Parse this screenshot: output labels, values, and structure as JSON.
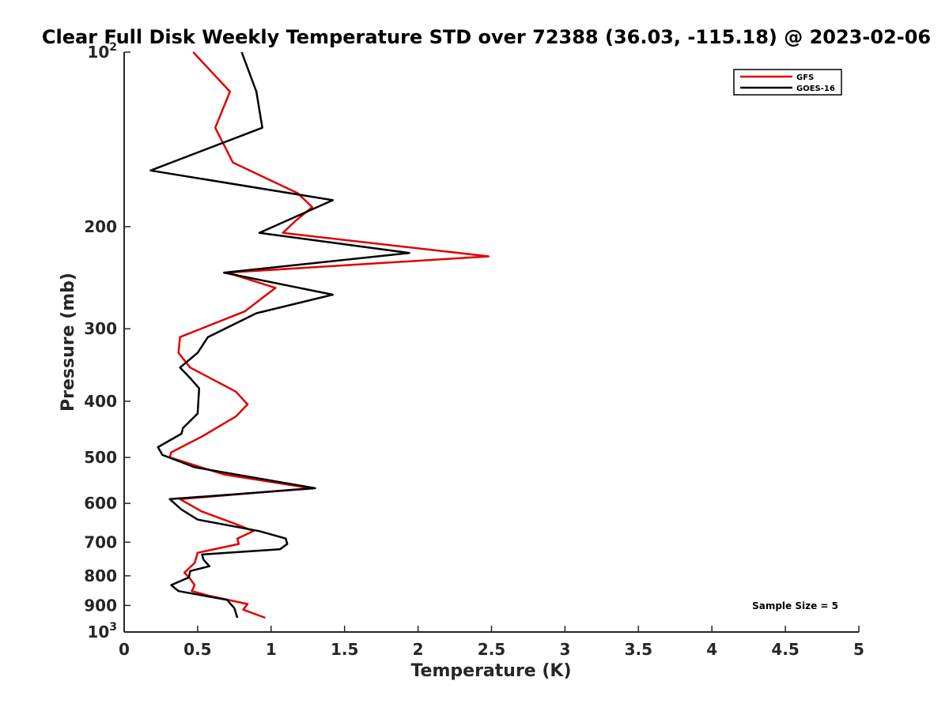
{
  "chart_data": {
    "type": "line",
    "title": "Clear Full Disk Weekly Temperature STD over 72388 (36.03, -115.18) @ 2023-02-06",
    "xlabel": "Temperature (K)",
    "ylabel": "Pressure (mb)",
    "xlim": [
      0,
      5
    ],
    "ylim": [
      1000,
      100
    ],
    "y_scale": "log",
    "y_reversed": true,
    "grid": false,
    "legend_position": "top-right",
    "x_ticks": [
      0,
      0.5,
      1,
      1.5,
      2,
      2.5,
      3,
      3.5,
      4,
      4.5,
      5
    ],
    "x_tick_labels": [
      "0",
      "0.5",
      "1",
      "1.5",
      "2",
      "2.5",
      "3",
      "3.5",
      "4",
      "4.5",
      "5"
    ],
    "y_ticks": [
      {
        "value": 100,
        "base": "10",
        "exp": "2"
      },
      {
        "value": 200,
        "label": "200"
      },
      {
        "value": 300,
        "label": "300"
      },
      {
        "value": 400,
        "label": "400"
      },
      {
        "value": 500,
        "label": "500"
      },
      {
        "value": 600,
        "label": "600"
      },
      {
        "value": 700,
        "label": "700"
      },
      {
        "value": 800,
        "label": "800"
      },
      {
        "value": 900,
        "label": "900"
      },
      {
        "value": 1000,
        "base": "10",
        "exp": "3"
      }
    ],
    "annotation": "Sample Size = 5",
    "series": [
      {
        "name": "GFS",
        "color": "#e00000",
        "points": [
          [
            0.47,
            100
          ],
          [
            0.72,
            117
          ],
          [
            0.62,
            135
          ],
          [
            0.74,
            155
          ],
          [
            1.18,
            175
          ],
          [
            1.28,
            185
          ],
          [
            1.17,
            195
          ],
          [
            1.08,
            205
          ],
          [
            2.48,
            225
          ],
          [
            0.7,
            240
          ],
          [
            1.03,
            255
          ],
          [
            0.82,
            280
          ],
          [
            0.38,
            310
          ],
          [
            0.37,
            330
          ],
          [
            0.45,
            350
          ],
          [
            0.76,
            385
          ],
          [
            0.84,
            405
          ],
          [
            0.76,
            425
          ],
          [
            0.53,
            460
          ],
          [
            0.32,
            490
          ],
          [
            0.31,
            500
          ],
          [
            0.68,
            535
          ],
          [
            1.27,
            565
          ],
          [
            0.38,
            590
          ],
          [
            0.53,
            620
          ],
          [
            0.75,
            650
          ],
          [
            0.88,
            670
          ],
          [
            0.77,
            690
          ],
          [
            0.78,
            705
          ],
          [
            0.5,
            730
          ],
          [
            0.48,
            760
          ],
          [
            0.41,
            790
          ],
          [
            0.45,
            810
          ],
          [
            0.48,
            830
          ],
          [
            0.46,
            850
          ],
          [
            0.57,
            865
          ],
          [
            0.84,
            895
          ],
          [
            0.81,
            915
          ],
          [
            0.96,
            945
          ]
        ]
      },
      {
        "name": "GOES-16",
        "color": "#000000",
        "points": [
          [
            0.8,
            100
          ],
          [
            0.9,
            117
          ],
          [
            0.94,
            135
          ],
          [
            0.18,
            160
          ],
          [
            1.42,
            180
          ],
          [
            0.92,
            205
          ],
          [
            1.94,
            222
          ],
          [
            0.68,
            240
          ],
          [
            1.42,
            262
          ],
          [
            0.9,
            282
          ],
          [
            0.57,
            310
          ],
          [
            0.5,
            330
          ],
          [
            0.38,
            350
          ],
          [
            0.45,
            365
          ],
          [
            0.51,
            380
          ],
          [
            0.5,
            420
          ],
          [
            0.4,
            445
          ],
          [
            0.39,
            455
          ],
          [
            0.23,
            480
          ],
          [
            0.26,
            495
          ],
          [
            0.48,
            520
          ],
          [
            1.3,
            565
          ],
          [
            0.31,
            590
          ],
          [
            0.39,
            615
          ],
          [
            0.5,
            640
          ],
          [
            0.92,
            670
          ],
          [
            1.1,
            690
          ],
          [
            1.11,
            705
          ],
          [
            1.06,
            720
          ],
          [
            0.53,
            735
          ],
          [
            0.54,
            750
          ],
          [
            0.58,
            770
          ],
          [
            0.45,
            785
          ],
          [
            0.44,
            805
          ],
          [
            0.32,
            830
          ],
          [
            0.37,
            850
          ],
          [
            0.7,
            880
          ],
          [
            0.75,
            910
          ],
          [
            0.77,
            945
          ]
        ]
      }
    ]
  }
}
